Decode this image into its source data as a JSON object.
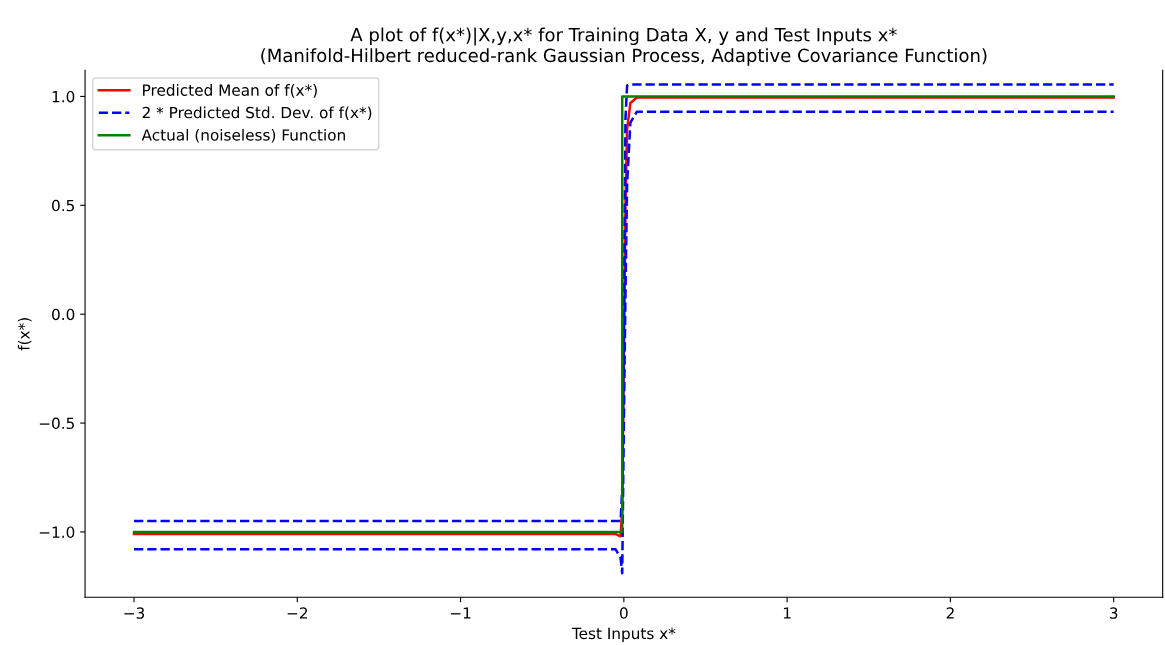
{
  "chart_data": {
    "type": "line",
    "title": "A plot of f(x*)|X,y,x* for Training Data X, y and Test Inputs x*\n(Manifold-Hilbert reduced-rank Gaussian Process, Adaptive Covariance Function)",
    "xlabel": "Test Inputs x*",
    "ylabel": "f(x*)",
    "series": [
      {
        "name": "Predicted Mean of f(x*)",
        "color": "#ff0000",
        "line_style": "solid",
        "x": [
          -3,
          -0.05,
          -0.02,
          -0.01,
          0,
          0.01,
          0.02,
          0.04,
          0.08,
          3
        ],
        "values": [
          -1.01,
          -1.01,
          -1.02,
          -0.9,
          -0.2,
          0.5,
          0.85,
          0.97,
          0.995,
          0.995
        ]
      },
      {
        "name": "2 * Predicted Std. Dev. of f(x*)",
        "color": "#0000ff",
        "line_style": "dashed",
        "x": [
          -3,
          -0.05,
          -0.02,
          -0.01,
          0,
          0.01,
          0.02,
          0.04,
          0.08,
          3
        ],
        "values": [
          -0.95,
          -0.95,
          -0.95,
          -0.8,
          0.0,
          0.9,
          1.05,
          1.055,
          1.055,
          1.055
        ]
      },
      {
        "color": "#0000ff",
        "line_style": "dashed",
        "x": [
          -3,
          -0.05,
          -0.02,
          -0.01,
          0,
          0.01,
          0.02,
          0.04,
          0.08,
          3
        ],
        "values": [
          -1.08,
          -1.08,
          -1.12,
          -1.19,
          -0.5,
          0.1,
          0.6,
          0.88,
          0.93,
          0.93
        ]
      },
      {
        "name": "Actual (noiseless) Function",
        "color": "#008000",
        "line_style": "solid",
        "x": [
          -3,
          -0.01,
          -0.01,
          3
        ],
        "values": [
          -1,
          -1,
          1,
          1
        ]
      }
    ],
    "xlim": [
      -3.3,
      3.3
    ],
    "ylim": [
      -1.3,
      1.12
    ],
    "xticks": [
      {
        "value": -3,
        "label": "−3"
      },
      {
        "value": -2,
        "label": "−2"
      },
      {
        "value": -1,
        "label": "−1"
      },
      0,
      1,
      2,
      3
    ],
    "yticks": [
      {
        "value": -1,
        "label": "−1.0"
      },
      {
        "value": -0.5,
        "label": "−0.5"
      },
      {
        "value": 0,
        "label": "0.0"
      },
      {
        "value": 0.5,
        "label": "0.5"
      },
      {
        "value": 1,
        "label": "1.0"
      }
    ],
    "legend": "top left",
    "grid": false
  }
}
